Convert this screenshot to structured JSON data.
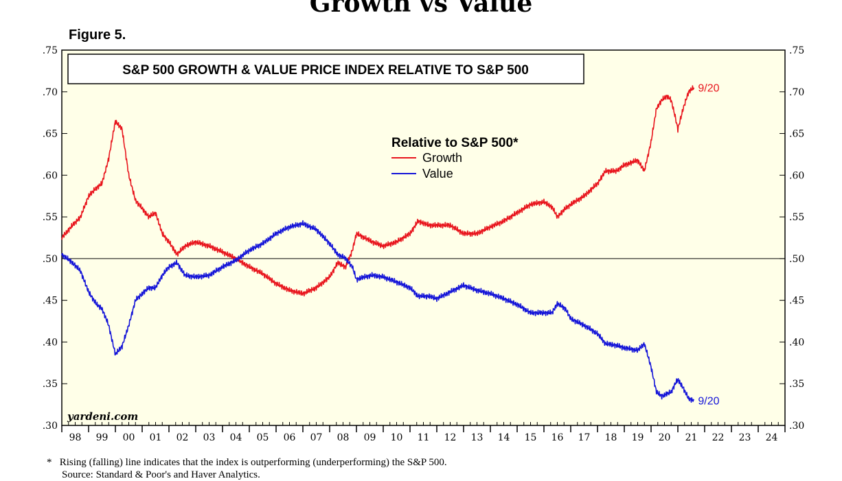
{
  "page": {
    "title": "Growth vs Value",
    "figure_label": "Figure 5.",
    "footnote_marker": "*",
    "footnote": "Rising (falling) line indicates that the index is outperforming (underperforming) the S&P 500.",
    "source": "Source: Standard & Poor's and Haver Analytics."
  },
  "chart_data": {
    "type": "line",
    "title": "S&P 500 GROWTH & VALUE PRICE INDEX RELATIVE TO S&P 500",
    "legend_title": "Relative to S&P 500*",
    "watermark": "yardeni.com",
    "ylim": [
      0.3,
      0.75
    ],
    "y_ticks": [
      ".75",
      ".70",
      ".65",
      ".60",
      ".55",
      ".50",
      ".45",
      ".40",
      ".35",
      ".30"
    ],
    "x_range": [
      1998,
      2025
    ],
    "x_tick_labels": [
      "98",
      "99",
      "00",
      "01",
      "02",
      "03",
      "04",
      "05",
      "06",
      "07",
      "08",
      "09",
      "10",
      "11",
      "12",
      "13",
      "14",
      "15",
      "16",
      "17",
      "18",
      "19",
      "20",
      "21",
      "22",
      "23",
      "24"
    ],
    "reference_line": 0.5,
    "background_color": "#ffffe8",
    "series": [
      {
        "name": "Growth",
        "color": "#e8141c",
        "end_label": "9/20",
        "points": [
          [
            1998.0,
            0.525
          ],
          [
            1998.4,
            0.54
          ],
          [
            1998.7,
            0.55
          ],
          [
            1999.0,
            0.575
          ],
          [
            1999.3,
            0.585
          ],
          [
            1999.5,
            0.59
          ],
          [
            1999.75,
            0.62
          ],
          [
            2000.0,
            0.665
          ],
          [
            2000.25,
            0.655
          ],
          [
            2000.5,
            0.6
          ],
          [
            2000.75,
            0.57
          ],
          [
            2001.0,
            0.56
          ],
          [
            2001.25,
            0.55
          ],
          [
            2001.5,
            0.555
          ],
          [
            2001.75,
            0.53
          ],
          [
            2002.0,
            0.52
          ],
          [
            2002.3,
            0.505
          ],
          [
            2002.6,
            0.515
          ],
          [
            2003.0,
            0.52
          ],
          [
            2003.5,
            0.515
          ],
          [
            2004.0,
            0.508
          ],
          [
            2004.5,
            0.5
          ],
          [
            2005.0,
            0.49
          ],
          [
            2005.5,
            0.482
          ],
          [
            2006.0,
            0.47
          ],
          [
            2006.5,
            0.462
          ],
          [
            2007.0,
            0.458
          ],
          [
            2007.5,
            0.465
          ],
          [
            2008.0,
            0.478
          ],
          [
            2008.3,
            0.495
          ],
          [
            2008.6,
            0.49
          ],
          [
            2008.85,
            0.51
          ],
          [
            2009.0,
            0.53
          ],
          [
            2009.3,
            0.525
          ],
          [
            2009.6,
            0.52
          ],
          [
            2010.0,
            0.515
          ],
          [
            2010.5,
            0.52
          ],
          [
            2011.0,
            0.53
          ],
          [
            2011.3,
            0.545
          ],
          [
            2011.7,
            0.54
          ],
          [
            2012.0,
            0.54
          ],
          [
            2012.5,
            0.54
          ],
          [
            2013.0,
            0.53
          ],
          [
            2013.5,
            0.53
          ],
          [
            2014.0,
            0.538
          ],
          [
            2014.5,
            0.545
          ],
          [
            2015.0,
            0.555
          ],
          [
            2015.5,
            0.565
          ],
          [
            2016.0,
            0.568
          ],
          [
            2016.3,
            0.562
          ],
          [
            2016.5,
            0.55
          ],
          [
            2016.8,
            0.56
          ],
          [
            2017.0,
            0.565
          ],
          [
            2017.5,
            0.575
          ],
          [
            2018.0,
            0.59
          ],
          [
            2018.3,
            0.605
          ],
          [
            2018.7,
            0.605
          ],
          [
            2019.0,
            0.612
          ],
          [
            2019.5,
            0.618
          ],
          [
            2019.75,
            0.605
          ],
          [
            2020.0,
            0.64
          ],
          [
            2020.2,
            0.68
          ],
          [
            2020.4,
            0.69
          ],
          [
            2020.6,
            0.695
          ],
          [
            2020.75,
            0.69
          ],
          [
            2020.9,
            0.67
          ],
          [
            2021.0,
            0.655
          ],
          [
            2021.2,
            0.68
          ],
          [
            2021.4,
            0.7
          ],
          [
            2021.6,
            0.705
          ]
        ]
      },
      {
        "name": "Value",
        "color": "#1414d8",
        "end_label": "9/20",
        "points": [
          [
            1998.0,
            0.505
          ],
          [
            1998.4,
            0.495
          ],
          [
            1998.7,
            0.485
          ],
          [
            1999.0,
            0.46
          ],
          [
            1999.3,
            0.445
          ],
          [
            1999.5,
            0.44
          ],
          [
            1999.75,
            0.42
          ],
          [
            2000.0,
            0.385
          ],
          [
            2000.25,
            0.395
          ],
          [
            2000.5,
            0.42
          ],
          [
            2000.75,
            0.45
          ],
          [
            2001.0,
            0.458
          ],
          [
            2001.25,
            0.465
          ],
          [
            2001.5,
            0.465
          ],
          [
            2001.75,
            0.48
          ],
          [
            2002.0,
            0.49
          ],
          [
            2002.3,
            0.495
          ],
          [
            2002.6,
            0.48
          ],
          [
            2003.0,
            0.478
          ],
          [
            2003.5,
            0.48
          ],
          [
            2004.0,
            0.49
          ],
          [
            2004.5,
            0.498
          ],
          [
            2005.0,
            0.51
          ],
          [
            2005.5,
            0.518
          ],
          [
            2006.0,
            0.53
          ],
          [
            2006.5,
            0.538
          ],
          [
            2007.0,
            0.542
          ],
          [
            2007.5,
            0.535
          ],
          [
            2008.0,
            0.518
          ],
          [
            2008.3,
            0.505
          ],
          [
            2008.6,
            0.5
          ],
          [
            2008.85,
            0.49
          ],
          [
            2009.0,
            0.475
          ],
          [
            2009.3,
            0.478
          ],
          [
            2009.6,
            0.48
          ],
          [
            2010.0,
            0.478
          ],
          [
            2010.5,
            0.472
          ],
          [
            2011.0,
            0.465
          ],
          [
            2011.3,
            0.455
          ],
          [
            2011.7,
            0.455
          ],
          [
            2012.0,
            0.452
          ],
          [
            2012.5,
            0.46
          ],
          [
            2013.0,
            0.468
          ],
          [
            2013.5,
            0.462
          ],
          [
            2014.0,
            0.458
          ],
          [
            2014.5,
            0.452
          ],
          [
            2015.0,
            0.445
          ],
          [
            2015.5,
            0.435
          ],
          [
            2016.0,
            0.435
          ],
          [
            2016.3,
            0.435
          ],
          [
            2016.5,
            0.446
          ],
          [
            2016.8,
            0.44
          ],
          [
            2017.0,
            0.428
          ],
          [
            2017.5,
            0.42
          ],
          [
            2018.0,
            0.41
          ],
          [
            2018.3,
            0.398
          ],
          [
            2018.7,
            0.396
          ],
          [
            2019.0,
            0.393
          ],
          [
            2019.5,
            0.39
          ],
          [
            2019.75,
            0.398
          ],
          [
            2020.0,
            0.37
          ],
          [
            2020.2,
            0.34
          ],
          [
            2020.4,
            0.335
          ],
          [
            2020.6,
            0.338
          ],
          [
            2020.75,
            0.34
          ],
          [
            2020.9,
            0.35
          ],
          [
            2021.0,
            0.355
          ],
          [
            2021.2,
            0.345
          ],
          [
            2021.4,
            0.332
          ],
          [
            2021.6,
            0.33
          ]
        ]
      }
    ]
  }
}
